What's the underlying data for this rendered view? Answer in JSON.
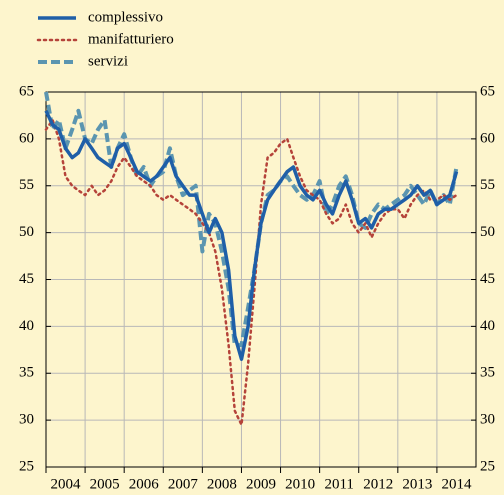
{
  "chart_data": {
    "type": "line",
    "x": [
      2004,
      2004.17,
      2004.33,
      2004.5,
      2004.67,
      2004.83,
      2005,
      2005.17,
      2005.33,
      2005.5,
      2005.67,
      2005.83,
      2006,
      2006.17,
      2006.33,
      2006.5,
      2006.67,
      2006.83,
      2007,
      2007.17,
      2007.33,
      2007.5,
      2007.67,
      2007.83,
      2008,
      2008.17,
      2008.33,
      2008.5,
      2008.67,
      2008.83,
      2009,
      2009.17,
      2009.33,
      2009.5,
      2009.67,
      2009.83,
      2010,
      2010.17,
      2010.33,
      2010.5,
      2010.67,
      2010.83,
      2011,
      2011.17,
      2011.33,
      2011.5,
      2011.67,
      2011.83,
      2012,
      2012.17,
      2012.33,
      2012.5,
      2012.67,
      2012.83,
      2013,
      2013.17,
      2013.33,
      2013.5,
      2013.67,
      2013.83,
      2014,
      2014.17,
      2014.33,
      2014.5
    ],
    "series": [
      {
        "name": "complessivo",
        "color": "#1f5fa8",
        "dash": "solid",
        "values": [
          63,
          61.5,
          61,
          59,
          58,
          58.5,
          60,
          59,
          58,
          57.5,
          57,
          59,
          59.5,
          58,
          56.5,
          56,
          55.5,
          56,
          57,
          58,
          56,
          55,
          54,
          54,
          52,
          50,
          51.5,
          50,
          46,
          39,
          36.5,
          40,
          46,
          51,
          53.5,
          54.5,
          55.5,
          56.5,
          57,
          55,
          54,
          53.5,
          54.5,
          53,
          52,
          54,
          55.5,
          53.5,
          51,
          51.5,
          50.5,
          52,
          52.5,
          52.5,
          53,
          53.5,
          54,
          55,
          54,
          54.5,
          53,
          53.5,
          54,
          56.5
        ]
      },
      {
        "name": "manifatturiero",
        "color": "#b5433a",
        "dash": "dotted",
        "values": [
          61,
          62,
          60,
          56,
          55,
          54.5,
          54,
          55,
          54,
          54.5,
          55.5,
          57,
          58,
          57,
          56,
          55.5,
          55,
          54,
          53.5,
          54,
          53.5,
          53,
          52.5,
          52,
          51,
          50,
          48,
          44,
          38,
          31,
          29.5,
          36,
          44,
          53,
          58,
          58.5,
          59.5,
          60,
          58,
          56,
          54.5,
          54,
          53.5,
          52,
          51,
          51.5,
          53,
          51,
          50,
          51,
          49.5,
          51,
          52,
          52.5,
          52.5,
          51.5,
          53,
          54,
          54.5,
          53.5,
          53.5,
          54,
          53.5,
          54
        ]
      },
      {
        "name": "servizi",
        "color": "#5b95b0",
        "dash": "dashed",
        "values": [
          65,
          61,
          62,
          59,
          61,
          63,
          60,
          59.5,
          61,
          62,
          57,
          59,
          60.5,
          58,
          56,
          57,
          55,
          56,
          56.5,
          59,
          56,
          54,
          54.5,
          55,
          48,
          52,
          51,
          48,
          44,
          38,
          38,
          42,
          46,
          51,
          54,
          54.5,
          55.5,
          56,
          55,
          54,
          53.5,
          54,
          55.5,
          52,
          53,
          55,
          56,
          54,
          51,
          50.5,
          52,
          53,
          52.5,
          53,
          53.5,
          54,
          55,
          54,
          53,
          54.5,
          53,
          54,
          53,
          57
        ]
      }
    ],
    "xlim": [
      2004,
      2015
    ],
    "xticks": [
      2004,
      2005,
      2006,
      2007,
      2008,
      2009,
      2010,
      2011,
      2012,
      2013,
      2014
    ],
    "ylim": [
      25,
      65
    ],
    "yticks": [
      25,
      30,
      35,
      40,
      45,
      50,
      55,
      60,
      65
    ],
    "y2lim": [
      25,
      65
    ],
    "y2ticks": [
      25,
      30,
      35,
      40,
      45,
      50,
      55,
      60,
      65
    ],
    "grid": true,
    "legend": "top-left"
  }
}
